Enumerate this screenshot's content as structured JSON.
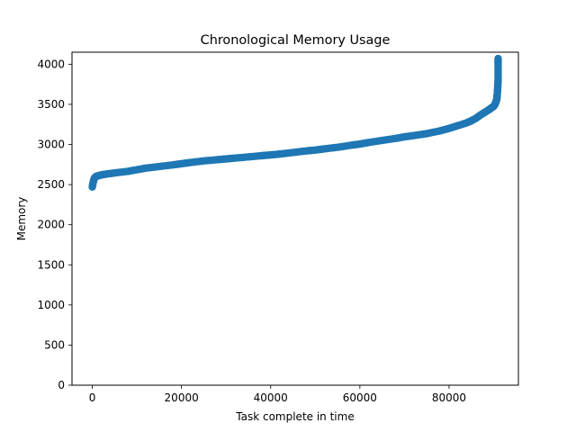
{
  "chart_data": {
    "type": "scatter",
    "title": "Chronological Memory Usage",
    "xlabel": "Task complete in time",
    "ylabel": "Memory",
    "xlim": [
      -4550,
      95550
    ],
    "ylim": [
      0,
      4150
    ],
    "xticks": [
      0,
      20000,
      40000,
      60000,
      80000
    ],
    "yticks": [
      0,
      500,
      1000,
      1500,
      2000,
      2500,
      3000,
      3500,
      4000
    ],
    "grid": false,
    "marker_color": "#1f77b4",
    "series": [
      {
        "x": [
          0,
          200,
          400,
          600,
          1000,
          2000,
          3000,
          5000,
          8000,
          10000,
          12000,
          15000,
          18000,
          20000,
          22000,
          25000,
          28000,
          30000,
          32000,
          35000,
          38000,
          40000,
          42000,
          45000,
          48000,
          50000,
          52000,
          55000,
          58000,
          60000,
          62000,
          65000,
          68000,
          70000,
          72000,
          75000,
          78000,
          80000,
          82000,
          84000,
          85000,
          86000,
          87000,
          88000,
          89000,
          89500,
          90000,
          90300,
          90500,
          90700,
          90800,
          90900,
          91000,
          91000,
          91000,
          91000
        ],
        "y": [
          2470,
          2530,
          2570,
          2590,
          2605,
          2620,
          2630,
          2645,
          2665,
          2685,
          2705,
          2725,
          2745,
          2760,
          2775,
          2795,
          2810,
          2820,
          2830,
          2845,
          2860,
          2870,
          2880,
          2900,
          2920,
          2930,
          2945,
          2965,
          2990,
          3005,
          3025,
          3050,
          3075,
          3095,
          3110,
          3135,
          3170,
          3200,
          3235,
          3270,
          3295,
          3325,
          3365,
          3400,
          3435,
          3455,
          3475,
          3500,
          3530,
          3560,
          3620,
          3700,
          3800,
          3900,
          4000,
          4070
        ]
      }
    ]
  }
}
